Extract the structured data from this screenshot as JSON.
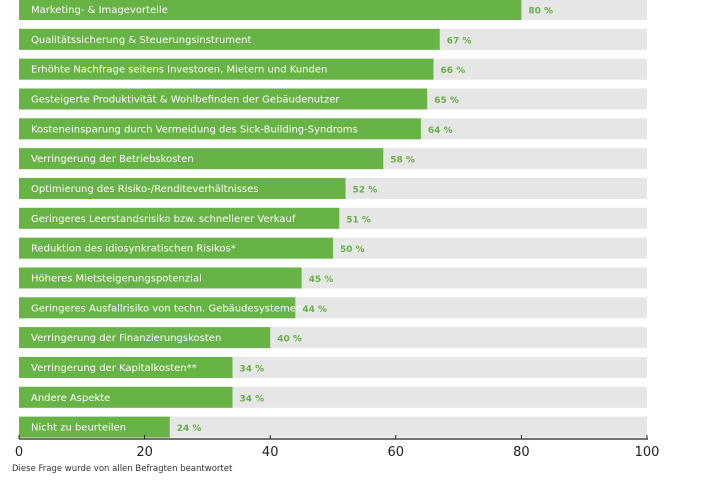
{
  "colors": {
    "bar": "#67b346",
    "track": "#e6e6e6",
    "value_text": "#67b346",
    "axis": "#222222"
  },
  "chart_data": {
    "type": "bar",
    "orientation": "horizontal",
    "categories": [
      "Marketing- & Imagevorteile",
      "Qualitätssicherung & Steuerungsinstrument",
      "Erhöhte Nachfrage seitens Investoren, Mietern und Kunden",
      "Gesteigerte Produktivität & Wohlbefinden der Gebäudenutzer",
      "Kosteneinsparung durch Vermeidung des Sick-Building-Syndroms",
      "Verringerung der Betriebskosten",
      "Optimierung des Risiko-/Renditeverhältnisses",
      "Geringeres Leerstandsrisiko bzw. schnellerer Verkauf",
      "Reduktion des idiosynkratischen Risikos*",
      "Höheres Mietsteigerungspotenzial",
      "Geringeres Ausfallrisiko von techn. Gebäudesystemen",
      "Verringerung der Finanzierungskosten",
      "Verringerung der Kapitalkosten**",
      "Andere Aspekte",
      "Nicht zu beurteilen"
    ],
    "values": [
      80,
      67,
      66,
      65,
      64,
      58,
      52,
      51,
      50,
      45,
      44,
      40,
      34,
      34,
      24
    ],
    "value_labels": [
      "80 %",
      "67 %",
      "66 %",
      "65 %",
      "64 %",
      "58 %",
      "52 %",
      "51 %",
      "50 %",
      "45 %",
      "44 %",
      "40 %",
      "34 %",
      "34 %",
      "24 %"
    ],
    "xlim": [
      0,
      100
    ],
    "xticks": [
      0,
      20,
      40,
      60,
      80,
      100
    ],
    "grid": false
  },
  "footnote": "Diese Frage wurde von allen Befragten beantwortet"
}
